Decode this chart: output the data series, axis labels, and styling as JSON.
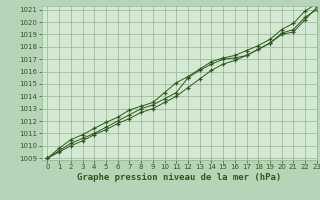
{
  "title": "Graphe pression niveau de la mer (hPa)",
  "bg_color": "#b8d4b8",
  "plot_bg_color": "#d4e8d4",
  "grid_color": "#90b890",
  "line_color": "#2d5a1b",
  "x_values": [
    0,
    1,
    2,
    3,
    4,
    5,
    6,
    7,
    8,
    9,
    10,
    11,
    12,
    13,
    14,
    15,
    16,
    17,
    18,
    19,
    20,
    21,
    22,
    23
  ],
  "line1": [
    1009.0,
    1009.6,
    1010.2,
    1010.6,
    1011.0,
    1011.5,
    1012.0,
    1012.5,
    1013.0,
    1013.3,
    1013.8,
    1014.3,
    1015.5,
    1016.1,
    1016.6,
    1017.0,
    1017.1,
    1017.3,
    1017.8,
    1018.3,
    1019.0,
    1019.2,
    1020.2,
    1021.2
  ],
  "line2": [
    1009.0,
    1009.8,
    1010.5,
    1010.9,
    1011.4,
    1011.9,
    1012.3,
    1012.9,
    1013.2,
    1013.5,
    1014.3,
    1015.1,
    1015.6,
    1016.2,
    1016.8,
    1017.1,
    1017.3,
    1017.7,
    1018.1,
    1018.6,
    1019.4,
    1019.9,
    1020.9,
    1021.5
  ],
  "line3": [
    1009.0,
    1009.5,
    1010.0,
    1010.4,
    1010.9,
    1011.3,
    1011.8,
    1012.2,
    1012.7,
    1013.0,
    1013.5,
    1014.0,
    1014.7,
    1015.4,
    1016.1,
    1016.6,
    1016.9,
    1017.3,
    1017.8,
    1018.3,
    1019.1,
    1019.4,
    1020.4,
    1021.0
  ],
  "ylim": [
    1009,
    1021
  ],
  "yticks": [
    1009,
    1010,
    1011,
    1012,
    1013,
    1014,
    1015,
    1016,
    1017,
    1018,
    1019,
    1020,
    1021
  ],
  "xlim": [
    -0.5,
    23
  ],
  "xticks": [
    0,
    1,
    2,
    3,
    4,
    5,
    6,
    7,
    8,
    9,
    10,
    11,
    12,
    13,
    14,
    15,
    16,
    17,
    18,
    19,
    20,
    21,
    22,
    23
  ],
  "tick_fontsize": 5,
  "title_fontsize": 6.5,
  "marker_size": 3,
  "line_width": 0.7
}
